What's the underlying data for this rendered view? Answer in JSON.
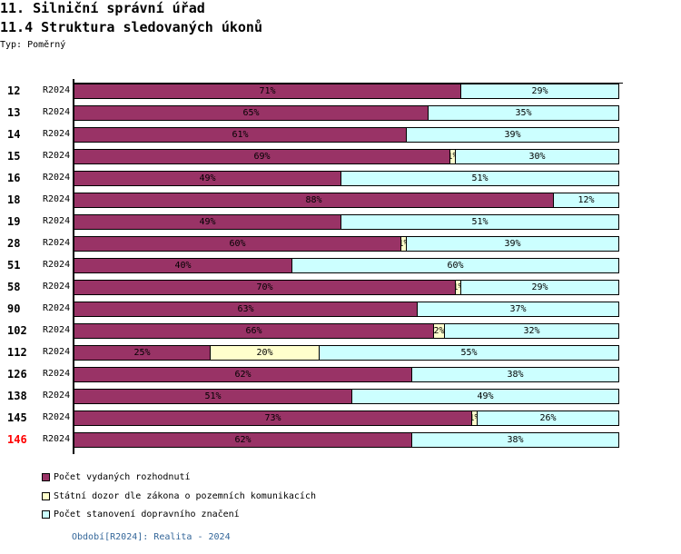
{
  "header": {
    "title": "11. Silniční správní úřad",
    "subtitle": "11.4 Struktura sledovaných úkonů",
    "type_label": "Typ: Poměrný"
  },
  "footer": {
    "period_text": "Období[R2024]: Realita - 2024",
    "color": "#336699"
  },
  "chart_data": {
    "type": "bar",
    "orientation": "horizontal",
    "stacked": true,
    "normalized": true,
    "title": "11.4 Struktura sledovaných úkonů",
    "xlabel": "",
    "ylabel": "",
    "xlim": [
      0,
      100
    ],
    "grid": false,
    "legend_position": "bottom-left",
    "categories": [
      "12",
      "13",
      "14",
      "15",
      "16",
      "18",
      "19",
      "28",
      "51",
      "58",
      "90",
      "102",
      "112",
      "126",
      "138",
      "145",
      "146"
    ],
    "periods": [
      "R2024",
      "R2024",
      "R2024",
      "R2024",
      "R2024",
      "R2024",
      "R2024",
      "R2024",
      "R2024",
      "R2024",
      "R2024",
      "R2024",
      "R2024",
      "R2024",
      "R2024",
      "R2024",
      "R2024"
    ],
    "highlighted_category": "146",
    "highlight_color": "#ff0000",
    "series": [
      {
        "name": "Počet vydaných rozhodnutí",
        "color": "#993366",
        "values": [
          71,
          65,
          61,
          69,
          49,
          88,
          49,
          60,
          40,
          70,
          63,
          66,
          25,
          62,
          51,
          73,
          62
        ],
        "labels": [
          "71%",
          "65%",
          "61%",
          "69%",
          "49%",
          "88%",
          "49%",
          "60%",
          "40%",
          "70%",
          "63%",
          "66%",
          "25%",
          "62%",
          "51%",
          "73%",
          "62%"
        ]
      },
      {
        "name": "Státní dozor dle zákona o pozemních komunikacích",
        "color": "#ffffcc",
        "values": [
          0,
          0,
          0,
          1,
          0,
          0,
          0,
          1,
          0,
          1,
          0,
          2,
          20,
          0,
          0,
          1,
          0
        ],
        "labels": [
          null,
          null,
          null,
          "1%",
          null,
          null,
          null,
          "1%",
          null,
          "1%",
          null,
          "2%",
          "20%",
          null,
          null,
          "1%",
          null
        ]
      },
      {
        "name": "Počet stanovení dopravního značení",
        "color": "#ccffff",
        "values": [
          29,
          35,
          39,
          30,
          51,
          12,
          51,
          39,
          60,
          29,
          37,
          32,
          55,
          38,
          49,
          26,
          38
        ],
        "labels": [
          "29%",
          "35%",
          "39%",
          "30%",
          "51%",
          "12%",
          "51%",
          "39%",
          "60%",
          "29%",
          "37%",
          "32%",
          "55%",
          "38%",
          "49%",
          "26%",
          "38%"
        ]
      }
    ]
  }
}
